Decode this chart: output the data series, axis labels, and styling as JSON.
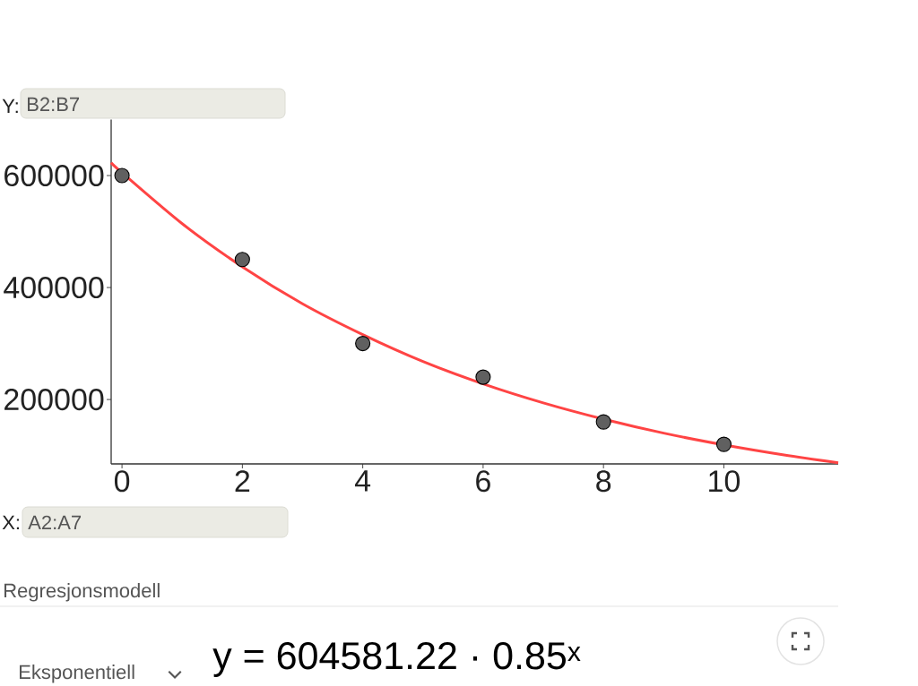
{
  "chart_data": {
    "type": "scatter",
    "xlim": [
      -0.18,
      11.9
    ],
    "ylim": [
      85000,
      700000
    ],
    "xticks": [
      0,
      2,
      4,
      6,
      8,
      10
    ],
    "yticks": [
      200000,
      400000,
      600000
    ],
    "annotations": [
      "Y:",
      "B2:B7",
      "X:",
      "A2:A7",
      "Regresjonsmodell",
      "y = 604581.22 · 0.85$^{x}$",
      "Eksponentiell"
    ],
    "series": [
      {
        "type": "line",
        "color": "#ff4444",
        "line_style": "solid",
        "marker": "none",
        "x": [
          -0.18,
          0,
          1,
          2,
          3,
          4,
          5,
          6,
          7,
          8,
          9,
          10,
          11,
          11.9
        ],
        "values": [
          623000,
          605000,
          514000,
          437000,
          371000,
          316000,
          268000,
          228000,
          194000,
          165000,
          140000,
          119000,
          101000,
          87000
        ]
      },
      {
        "color": "#606060",
        "marker": "circle",
        "x": [
          0,
          2,
          4,
          6,
          8,
          10
        ],
        "values": [
          600000,
          450000,
          300000,
          240000,
          160000,
          120000
        ]
      }
    ]
  }
}
